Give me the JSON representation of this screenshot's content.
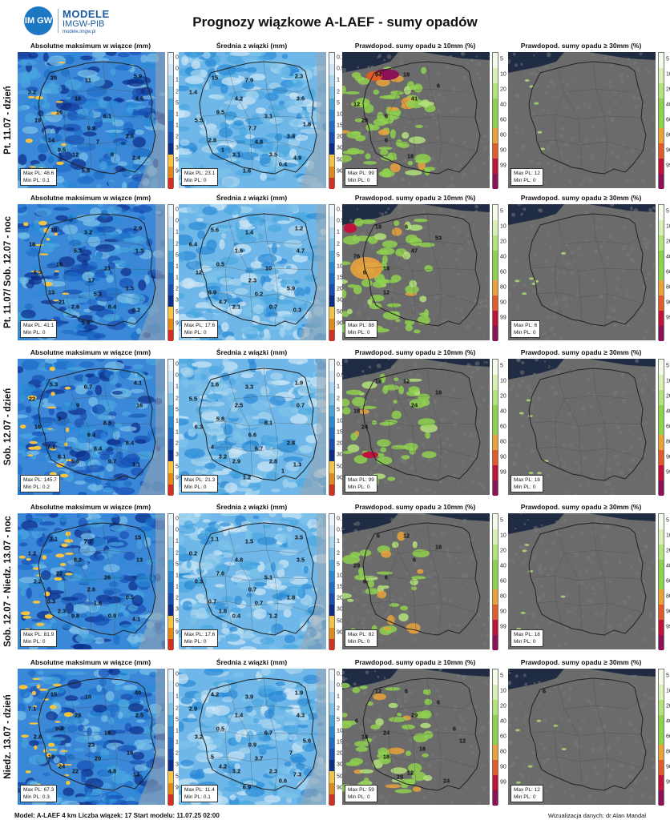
{
  "logo": {
    "badge": "IM GW",
    "org": "MODELE",
    "org2": "IMGW-PIB",
    "site": "modele.imgw.pl"
  },
  "title": "Prognozy wiązkowe A-LAEF - sumy opadów",
  "columns": [
    {
      "title": "Absolutne maksimum w wiązce (mm)",
      "scale": [
        "0.1",
        "0.5",
        "1",
        "2",
        "5",
        "10",
        "15",
        "20",
        "30",
        "50",
        "90"
      ],
      "colors": [
        "#e9f4fb",
        "#cfe7f6",
        "#a9d6f0",
        "#7cc2ea",
        "#48a6df",
        "#2a8ad6",
        "#1d6dc9",
        "#1750b5",
        "#0b2e8a",
        "#f5c342",
        "#e08a1c",
        "#d62f1f"
      ]
    },
    {
      "title": "Średnia z wiązki (mm)",
      "scale": [
        "0.1",
        "0.5",
        "1",
        "2",
        "5",
        "10",
        "15",
        "20",
        "30",
        "50",
        "90"
      ],
      "colors": [
        "#e9f4fb",
        "#cfe7f6",
        "#a9d6f0",
        "#7cc2ea",
        "#48a6df",
        "#2a8ad6",
        "#1d6dc9",
        "#1750b5",
        "#0b2e8a",
        "#f5c342",
        "#e08a1c",
        "#d62f1f"
      ]
    },
    {
      "title": "Prawdopod. sumy opadu ≥ 10mm (%)",
      "scale": [
        "5",
        "10",
        "20",
        "40",
        "60",
        "80",
        "90",
        "99"
      ],
      "colors": [
        "#f4fbe9",
        "#d8f0b4",
        "#b3e27a",
        "#8fd04f",
        "#8fd04f",
        "#e9a23b",
        "#e05a2a",
        "#c0123b",
        "#8d1157"
      ]
    },
    {
      "title": "Prawdopod. sumy opadu ≥ 30mm (%)",
      "scale": [
        "5",
        "10",
        "20",
        "40",
        "60",
        "80",
        "90",
        "99"
      ],
      "colors": [
        "#f4fbe9",
        "#d8f0b4",
        "#b3e27a",
        "#8fd04f",
        "#8fd04f",
        "#e9a23b",
        "#e05a2a",
        "#c0123b",
        "#8d1157"
      ]
    }
  ],
  "rows": [
    {
      "label": "Pt. 11.07 - dzień",
      "panels": [
        {
          "max": "Max PL: 48.6",
          "min": "Min PL: 0.1",
          "values": [
            "28",
            "11",
            "5.9",
            "3.2",
            "18",
            "4.6",
            "16",
            "6.1",
            "19",
            "9.9",
            "2.6",
            "14",
            "7",
            "9.5",
            "12",
            "8",
            "2.4",
            "5.8"
          ]
        },
        {
          "max": "Max PL: 23.1",
          "min": "Min PL: 0",
          "values": [
            "15",
            "7.9",
            "2.3",
            "1.4",
            "4.2",
            "3.6",
            "9.5",
            "3.1",
            "5.5",
            "7.7",
            "3.4",
            "2.8",
            "4.8",
            "1",
            "3.1",
            "3.5",
            "4.9",
            "1.6",
            "0.4",
            "1.8"
          ]
        },
        {
          "max": "Max PL: 99",
          "min": "Min PL: 0",
          "values": [
            "94",
            "18",
            "6",
            "41",
            "12",
            "29",
            "6",
            "6",
            "18"
          ]
        },
        {
          "max": "Max PL: 12",
          "min": "Min PL: 0",
          "values": []
        }
      ]
    },
    {
      "label": "Pt. 11.07/ Sob. 12.07 - noc",
      "panels": [
        {
          "max": "Max PL: 41.1",
          "min": "Min PL: 0",
          "values": [
            "16",
            "3.2",
            "2.9",
            "18",
            "5.3",
            "1.3",
            "18",
            "21",
            "6.3",
            "17",
            "1.5",
            "13",
            "5.3",
            "21",
            "2.6",
            "8.4",
            "0.2",
            "1.3"
          ]
        },
        {
          "max": "Max PL: 17.6",
          "min": "Min PL: 0",
          "values": [
            "5.6",
            "1.4",
            "1.2",
            "6.4",
            "1.5",
            "4.7",
            "0.5",
            "10",
            "12",
            "2.3",
            "5.9",
            "6.9",
            "0.2",
            "4.7",
            "2.1",
            "0.7",
            "0.3"
          ]
        },
        {
          "max": "Max PL: 88",
          "min": "Min PL: 0",
          "values": [
            "18",
            "6",
            "53",
            "47",
            "76",
            "6",
            "18",
            "12"
          ]
        },
        {
          "max": "Max PL: 6",
          "min": "Min PL: 0",
          "values": []
        }
      ]
    },
    {
      "label": "Sob. 12.07 - dzień",
      "panels": [
        {
          "max": "Max PL: 145.7",
          "min": "Min PL: 0.2",
          "values": [
            "5.3",
            "6.7",
            "4.1",
            "22",
            "9",
            "16",
            "3",
            "8.5",
            "16",
            "9.4",
            "8.4",
            "7.1",
            "8.4",
            "8.1",
            "5.6",
            "9.7",
            "3.1"
          ]
        },
        {
          "max": "Max PL: 21.3",
          "min": "Min PL: 0",
          "values": [
            "1.6",
            "3.3",
            "1.9",
            "5.5",
            "2.5",
            "0.7",
            "5.8",
            "8.1",
            "6.3",
            "6.6",
            "2.8",
            "4",
            "6.7",
            "3.2",
            "2.9",
            "2.8",
            "1.3",
            "1.2",
            "1"
          ]
        },
        {
          "max": "Max PL: 99",
          "min": "Min PL: 0",
          "values": [
            "18",
            "12",
            "18",
            "24",
            "18",
            "24"
          ]
        },
        {
          "max": "Max PL: 18",
          "min": "Min PL: 0",
          "values": []
        }
      ]
    },
    {
      "label": "Sob. 12.07 - Niedz. 13.07 - noc",
      "panels": [
        {
          "max": "Max PL: 81.9",
          "min": "Min PL: 0",
          "values": [
            "3.1",
            "7.7",
            "15",
            "1.2",
            "8.2",
            "13",
            "22",
            "26",
            "2.2",
            "2.6",
            "0.5",
            "5.3",
            "1.6",
            "2.3",
            "9.8",
            "0.9",
            "4.1"
          ]
        },
        {
          "max": "Max PL: 17.6",
          "min": "Min PL: 0",
          "values": [
            "1.1",
            "1.5",
            "3.5",
            "0.2",
            "4.8",
            "3.5",
            "7.6",
            "5.1",
            "0.3",
            "0.7",
            "1.8",
            "0.7",
            "0.7",
            "1.8",
            "0.4",
            "1.2"
          ]
        },
        {
          "max": "Max PL: 82",
          "min": "Min PL: 0",
          "values": [
            "6",
            "12",
            "18",
            "6",
            "29",
            "6",
            "6"
          ]
        },
        {
          "max": "Max PL: 18",
          "min": "Min PL: 0",
          "values": []
        }
      ]
    },
    {
      "label": "Niedz. 13.07 - dzień",
      "panels": [
        {
          "max": "Max PL: 67.3",
          "min": "Min PL: 0.3",
          "values": [
            "15",
            "10",
            "40",
            "7.1",
            "29",
            "2.5",
            "9.4",
            "19",
            "2.8",
            "23",
            "19",
            "19",
            "20",
            "24",
            "22",
            "4.8",
            "13"
          ]
        },
        {
          "max": "Max PL: 11.4",
          "min": "Min PL: 0.1",
          "values": [
            "4.2",
            "3.9",
            "1.9",
            "2.9",
            "1.4",
            "4.3",
            "0.5",
            "6.7",
            "3.2",
            "0.9",
            "7",
            "5",
            "3.7",
            "4.2",
            "3.2",
            "2.3",
            "7.3",
            "6.9",
            "0.6",
            "5.6"
          ]
        },
        {
          "max": "Max PL: 59",
          "min": "Min PL: 0",
          "values": [
            "12",
            "6",
            "6",
            "29",
            "6",
            "18",
            "24",
            "18",
            "12",
            "18",
            "6",
            "29",
            "24",
            "12"
          ]
        },
        {
          "max": "Max PL: 12",
          "min": "Min PL: 0",
          "values": [
            "6"
          ]
        }
      ]
    }
  ],
  "footer": {
    "left": "Model: A-LAEF 4 km Liczba wiązek: 17     Start modelu: 11.07.25 02:00",
    "right": "Wizualizacja danych: dr Alan Mandal"
  }
}
